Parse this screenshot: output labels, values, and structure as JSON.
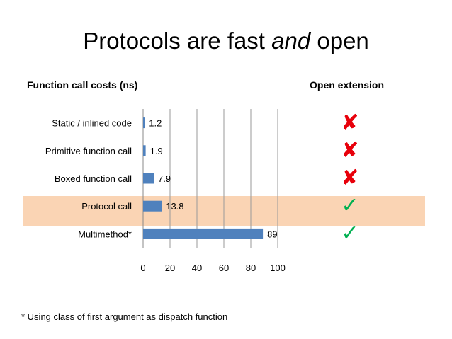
{
  "title": {
    "before": "Protocols are fast ",
    "emphasis": "and",
    "after": " open"
  },
  "left_heading": "Function call costs (ns)",
  "right_heading": "Open extension",
  "footnote": "* Using class of first argument as dispatch function",
  "colors": {
    "bar": "#4f81bd",
    "highlight": "#fad4b4",
    "cross": "#e8000b",
    "check": "#00b050",
    "rule": "#5b8a6e"
  },
  "chart_data": {
    "type": "bar",
    "orientation": "horizontal",
    "categories": [
      "Static / inlined code",
      "Primitive function call",
      "Boxed function call",
      "Protocol call",
      "Multimethod*"
    ],
    "values": [
      1.2,
      1.9,
      7.9,
      13.8,
      89
    ],
    "data_labels": [
      "1.2",
      "1.9",
      "7.9",
      "13.8",
      "89"
    ],
    "xlim": [
      0,
      100
    ],
    "xticks": [
      "0",
      "20",
      "40",
      "60",
      "80",
      "100"
    ],
    "grid": true,
    "highlighted_category": "Protocol call"
  },
  "open_extension": [
    {
      "category": "Static / inlined code",
      "icon": "cross-icon",
      "glyph": "✘"
    },
    {
      "category": "Primitive function call",
      "icon": "cross-icon",
      "glyph": "✘"
    },
    {
      "category": "Boxed function call",
      "icon": "cross-icon",
      "glyph": "✘"
    },
    {
      "category": "Protocol call",
      "icon": "check-icon",
      "glyph": "✓"
    },
    {
      "category": "Multimethod*",
      "icon": "check-icon",
      "glyph": "✓"
    }
  ]
}
